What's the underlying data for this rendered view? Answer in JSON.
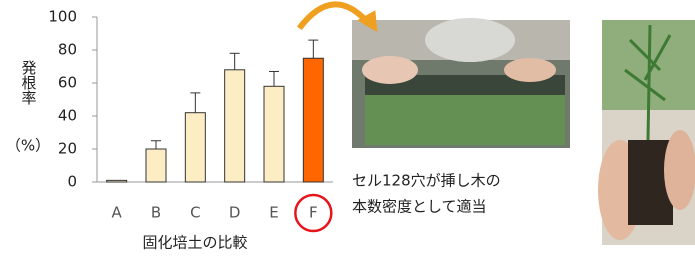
{
  "chart_data": {
    "type": "bar",
    "y_label": "発根率",
    "y_unit": "（%）",
    "x_label": "固化培土の比較",
    "categories": [
      "A",
      "B",
      "C",
      "D",
      "E",
      "F"
    ],
    "values": [
      1,
      20,
      42,
      68,
      58,
      75
    ],
    "errors": [
      0,
      5,
      12,
      10,
      9,
      11
    ],
    "colors": [
      "#fdedc4",
      "#fdedc4",
      "#fdedc4",
      "#fdedc4",
      "#fdedc4",
      "#ff6600"
    ],
    "ylim": [
      0,
      100
    ],
    "yticks": [
      0,
      20,
      40,
      60,
      80,
      100
    ],
    "grid": false
  },
  "caption": [
    "セル128穴が挿し木の",
    "本数密度として適当"
  ]
}
